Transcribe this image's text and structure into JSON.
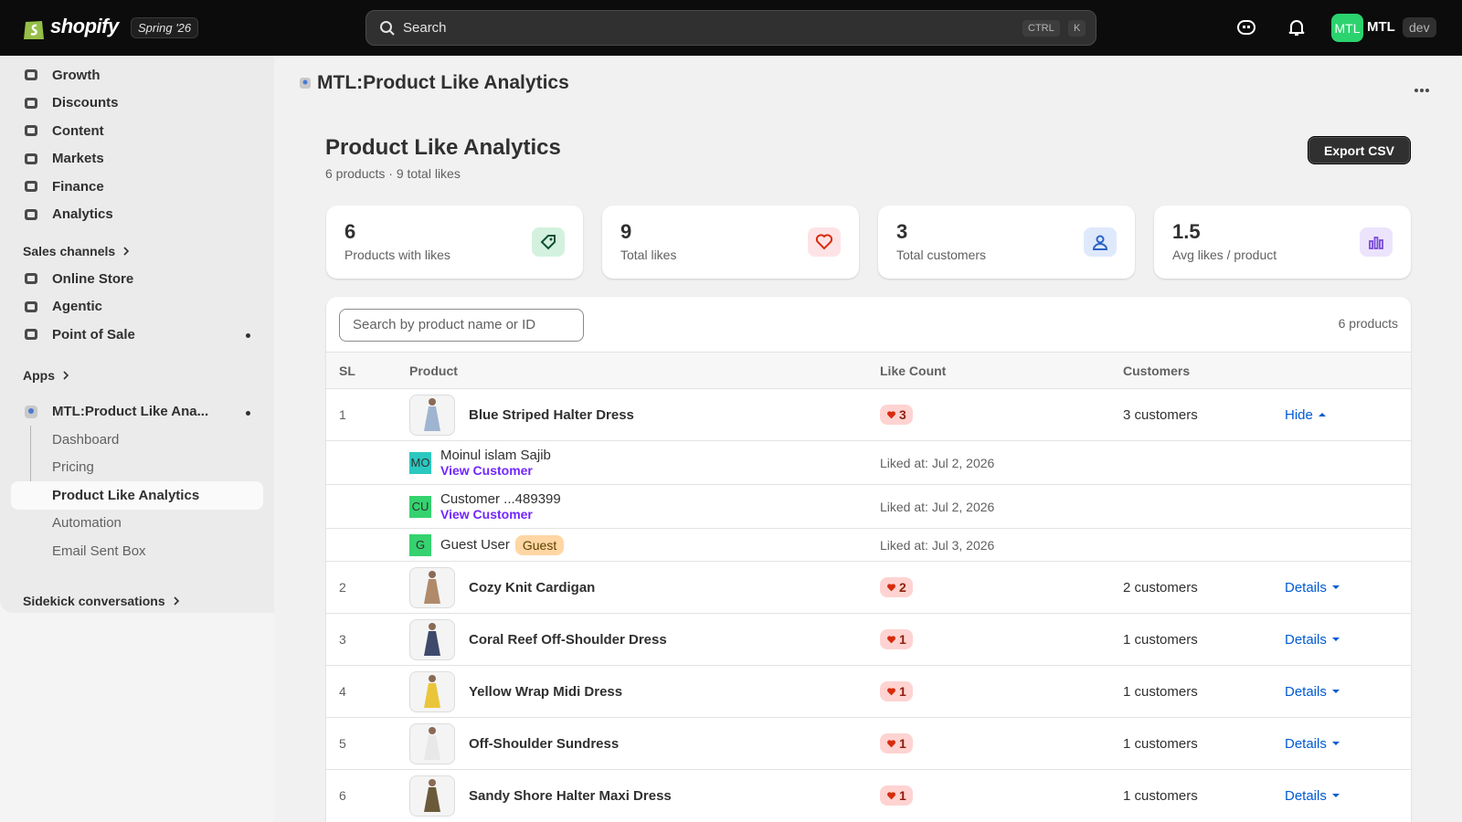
{
  "topbar": {
    "brand": "shopify",
    "badge": "Spring '26",
    "search_placeholder": "Search",
    "shortcut": [
      "CTRL",
      "K"
    ],
    "avatar": "MTL",
    "store": "MTL",
    "env": "dev"
  },
  "sidebar": {
    "items": [
      "Growth",
      "Discounts",
      "Content",
      "Markets",
      "Finance",
      "Analytics"
    ],
    "sales_channels": {
      "title": "Sales channels",
      "items": [
        "Online Store",
        "Agentic",
        "Point of Sale"
      ]
    },
    "apps": {
      "title": "Apps",
      "app": "MTL:Product Like Ana...",
      "subitems": [
        "Dashboard",
        "Pricing",
        "Product Like Analytics",
        "Automation",
        "Email Sent Box"
      ]
    },
    "sidekick": "Sidekick conversations"
  },
  "header": {
    "title": "MTL:Product Like Analytics"
  },
  "page": {
    "title": "Product Like Analytics",
    "subtitle": "6 products · 9 total likes",
    "export": "Export CSV"
  },
  "stats": [
    {
      "value": 6,
      "label": "Products with likes"
    },
    {
      "value": 9,
      "label": "Total likes"
    },
    {
      "value": 3,
      "label": "Total customers"
    },
    {
      "value": 1.5,
      "label": "Avg likes / product"
    }
  ],
  "table": {
    "search_placeholder": "Search by product name or ID",
    "count": "6 products",
    "columns": [
      "SL",
      "Product",
      "Like Count",
      "Customers"
    ],
    "rows": [
      {
        "sl": 1,
        "product": "Blue Striped Halter Dress",
        "likes": 3,
        "customers": "3 customers",
        "action": "Hide",
        "likers": [
          {
            "initials": "MO",
            "name": "Moinul islam Sajib",
            "link": "View Customer",
            "liked": "Liked at: Jul 2, 2026"
          },
          {
            "initials": "CU",
            "name": "Customer ...489399",
            "link": "View Customer",
            "liked": "Liked at: Jul 2, 2026"
          },
          {
            "initials": "G",
            "name": "Guest User",
            "tag": "Guest",
            "liked": "Liked at: Jul 3, 2026"
          }
        ]
      },
      {
        "sl": 2,
        "product": "Cozy Knit Cardigan",
        "likes": 2,
        "customers": "2 customers",
        "action": "Details"
      },
      {
        "sl": 3,
        "product": "Coral Reef Off-Shoulder Dress",
        "likes": 1,
        "customers": "1 customers",
        "action": "Details"
      },
      {
        "sl": 4,
        "product": "Yellow Wrap Midi Dress",
        "likes": 1,
        "customers": "1 customers",
        "action": "Details"
      },
      {
        "sl": 5,
        "product": "Off-Shoulder Sundress",
        "likes": 1,
        "customers": "1 customers",
        "action": "Details"
      },
      {
        "sl": 6,
        "product": "Sandy Shore Halter Maxi Dress",
        "likes": 1,
        "customers": "1 customers",
        "action": "Details"
      }
    ]
  }
}
